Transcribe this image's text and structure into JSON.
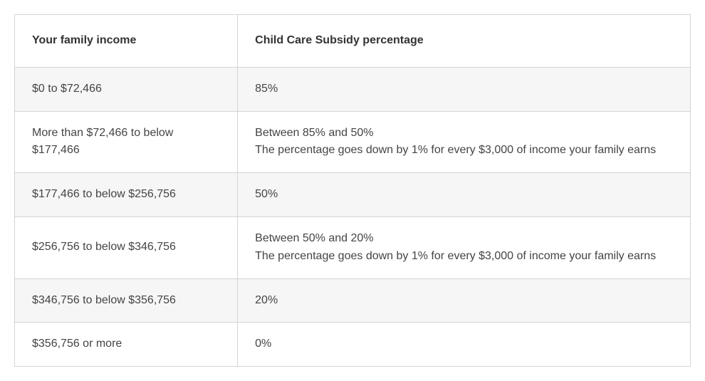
{
  "table": {
    "columns": [
      {
        "label": "Your family income",
        "key": "income"
      },
      {
        "label": "Child Care Subsidy percentage",
        "key": "subsidy"
      }
    ],
    "rows": [
      {
        "income": "$0 to $72,466",
        "subsidy": "85%",
        "alt": true
      },
      {
        "income": "More than $72,466 to below $177,466",
        "subsidy": "Between 85% and 50%\nThe percentage goes down by 1% for every $3,000 of income your family earns",
        "alt": false
      },
      {
        "income": "$177,466 to below $256,756",
        "subsidy": "50%",
        "alt": true
      },
      {
        "income": "$256,756 to below $346,756",
        "subsidy": "Between 50% and 20%\nThe percentage goes down by 1% for every $3,000 of income your family earns",
        "alt": false
      },
      {
        "income": "$346,756 to below $356,756",
        "subsidy": "20%",
        "alt": true
      },
      {
        "income": "$356,756 or more",
        "subsidy": "0%",
        "alt": false
      }
    ],
    "style": {
      "border_color": "#d4d4d4",
      "header_bg": "#ffffff",
      "alt_row_bg": "#f6f6f6",
      "row_bg": "#ffffff",
      "text_color": "#444444",
      "header_text_color": "#333333",
      "font_size": 16,
      "col_income_width_pct": 33,
      "col_subsidy_width_pct": 67
    }
  }
}
